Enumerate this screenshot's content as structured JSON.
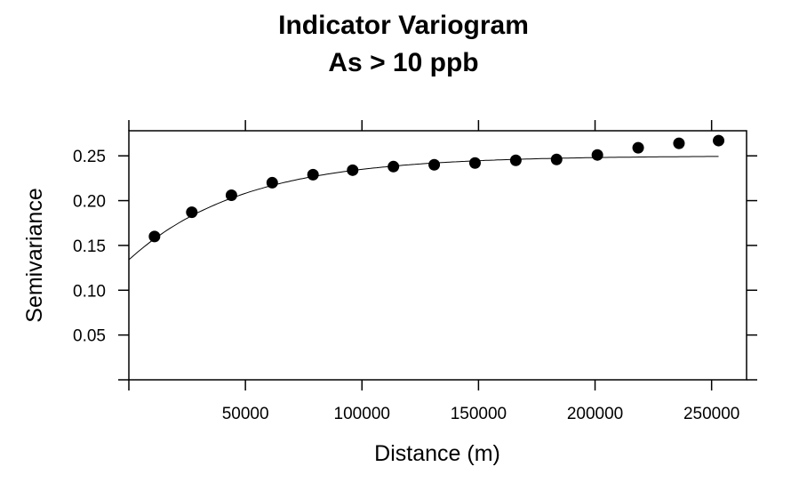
{
  "chart_data": {
    "type": "scatter",
    "title": "Indicator Variogram",
    "subtitle": "As > 10 ppb",
    "xlabel": "Distance (m)",
    "ylabel": "Semivariance",
    "xlim": [
      0,
      265000
    ],
    "ylim": [
      0,
      0.278
    ],
    "x_ticks": [
      0,
      50000,
      100000,
      150000,
      200000,
      250000
    ],
    "x_tick_labels": [
      "",
      "50000",
      "100000",
      "150000",
      "200000",
      "250000"
    ],
    "y_ticks": [
      0,
      0.05,
      0.1,
      0.15,
      0.2,
      0.25
    ],
    "y_tick_labels": [
      "",
      "0.05",
      "0.10",
      "0.15",
      "0.20",
      "0.25"
    ],
    "grid": false,
    "series": [
      {
        "points": [
          {
            "x": 11000,
            "y": 0.16
          },
          {
            "x": 27000,
            "y": 0.187
          },
          {
            "x": 44000,
            "y": 0.206
          },
          {
            "x": 61500,
            "y": 0.22
          },
          {
            "x": 79000,
            "y": 0.229
          },
          {
            "x": 96000,
            "y": 0.234
          },
          {
            "x": 113500,
            "y": 0.238
          },
          {
            "x": 131000,
            "y": 0.24
          },
          {
            "x": 148500,
            "y": 0.242
          },
          {
            "x": 166000,
            "y": 0.245
          },
          {
            "x": 183500,
            "y": 0.246
          },
          {
            "x": 201000,
            "y": 0.251
          },
          {
            "x": 218500,
            "y": 0.259
          },
          {
            "x": 236000,
            "y": 0.264
          },
          {
            "x": 253000,
            "y": 0.267
          }
        ]
      }
    ],
    "fitted_model": {
      "nugget": 0.134,
      "sill": 0.25,
      "range": 49000,
      "x_max": 253000
    }
  }
}
